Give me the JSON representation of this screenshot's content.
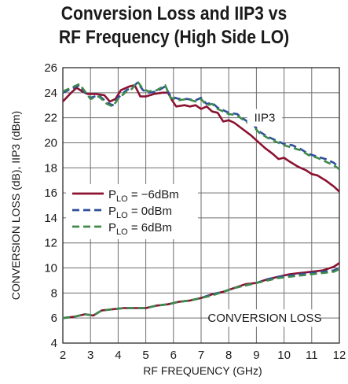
{
  "chart_data": {
    "type": "line",
    "title_line1": "Conversion Loss and IIP3 vs",
    "title_line2": "RF Frequency (High Side LO)",
    "xlabel": "RF FREQUENCY (GHz)",
    "ylabel": "CONVERSION LOSS (dB), IIP3 (dBm)",
    "xlim": [
      2,
      12
    ],
    "ylim": [
      4,
      26
    ],
    "xticks": [
      2,
      3,
      4,
      5,
      6,
      7,
      8,
      9,
      10,
      11,
      12
    ],
    "yticks": [
      4,
      6,
      8,
      10,
      12,
      14,
      16,
      18,
      20,
      22,
      24,
      26
    ],
    "grid": true,
    "legend_position": "middle-left",
    "annotations": [
      {
        "text": "IIP3",
        "x": 9.3,
        "y": 22
      },
      {
        "text": "CONVERSION LOSS",
        "x": 9.3,
        "y": 6
      }
    ],
    "series": [
      {
        "name": "P_LO = −6dBm",
        "legend_main": "P",
        "legend_sub": "LO",
        "legend_rest": " = −6dBm",
        "color": "#8b1230",
        "dash": "solid",
        "iip3": [
          [
            2,
            23.3
          ],
          [
            2.3,
            24
          ],
          [
            2.5,
            24.4
          ],
          [
            2.7,
            24.1
          ],
          [
            2.9,
            23.9
          ],
          [
            3.2,
            23.9
          ],
          [
            3.5,
            23.8
          ],
          [
            3.7,
            23.3
          ],
          [
            3.9,
            23.5
          ],
          [
            4.1,
            24.2
          ],
          [
            4.4,
            24.5
          ],
          [
            4.6,
            24.6
          ],
          [
            4.8,
            23.7
          ],
          [
            5,
            23.7
          ],
          [
            5.3,
            23.9
          ],
          [
            5.6,
            24
          ],
          [
            5.8,
            24
          ],
          [
            5.95,
            23.4
          ],
          [
            6.1,
            22.9
          ],
          [
            6.4,
            23
          ],
          [
            6.6,
            22.9
          ],
          [
            6.8,
            23
          ],
          [
            7,
            22.7
          ],
          [
            7.2,
            22.9
          ],
          [
            7.4,
            22.5
          ],
          [
            7.6,
            22.4
          ],
          [
            7.8,
            21.7
          ],
          [
            8,
            21.8
          ],
          [
            8.2,
            21.6
          ],
          [
            8.5,
            21.1
          ],
          [
            8.8,
            20.6
          ],
          [
            9,
            20.2
          ],
          [
            9.3,
            19.6
          ],
          [
            9.6,
            19.1
          ],
          [
            9.8,
            18.7
          ],
          [
            10,
            18.8
          ],
          [
            10.2,
            18.5
          ],
          [
            10.5,
            18.1
          ],
          [
            10.8,
            17.8
          ],
          [
            11,
            17.5
          ],
          [
            11.2,
            17.4
          ],
          [
            11.5,
            17
          ],
          [
            11.8,
            16.5
          ],
          [
            12,
            16.1
          ]
        ],
        "conversion_loss": [
          [
            2,
            6
          ],
          [
            2.4,
            6.1
          ],
          [
            2.8,
            6.3
          ],
          [
            3.1,
            6.2
          ],
          [
            3.4,
            6.6
          ],
          [
            3.8,
            6.7
          ],
          [
            4.2,
            6.8
          ],
          [
            4.6,
            6.8
          ],
          [
            5,
            6.8
          ],
          [
            5.4,
            7
          ],
          [
            5.8,
            7.1
          ],
          [
            6.2,
            7.3
          ],
          [
            6.6,
            7.4
          ],
          [
            7,
            7.6
          ],
          [
            7.4,
            7.9
          ],
          [
            7.8,
            8.1
          ],
          [
            8.2,
            8.4
          ],
          [
            8.6,
            8.7
          ],
          [
            9,
            8.8
          ],
          [
            9.4,
            9.1
          ],
          [
            9.8,
            9.3
          ],
          [
            10.2,
            9.5
          ],
          [
            10.6,
            9.6
          ],
          [
            11,
            9.7
          ],
          [
            11.4,
            9.8
          ],
          [
            11.8,
            10.1
          ],
          [
            12,
            10.4
          ]
        ]
      },
      {
        "name": "P_LO = 0dBm",
        "legend_main": "P",
        "legend_sub": "LO",
        "legend_rest": " = 0dBm",
        "color": "#2e4e9c",
        "dash": "dash",
        "iip3": [
          [
            2,
            24
          ],
          [
            2.3,
            24.3
          ],
          [
            2.6,
            24.6
          ],
          [
            2.8,
            24
          ],
          [
            3,
            23.6
          ],
          [
            3.3,
            23.8
          ],
          [
            3.6,
            23.2
          ],
          [
            3.8,
            23
          ],
          [
            4,
            23.6
          ],
          [
            4.3,
            24.2
          ],
          [
            4.5,
            24.4
          ],
          [
            4.7,
            24.8
          ],
          [
            4.9,
            24.2
          ],
          [
            5.1,
            24
          ],
          [
            5.4,
            24.1
          ],
          [
            5.7,
            24.5
          ],
          [
            5.9,
            23.7
          ],
          [
            6.2,
            23.5
          ],
          [
            6.5,
            23.5
          ],
          [
            6.8,
            23.4
          ],
          [
            7,
            23.6
          ],
          [
            7.2,
            23.1
          ],
          [
            7.4,
            23.2
          ],
          [
            7.6,
            22.8
          ],
          [
            7.8,
            22.6
          ],
          [
            8,
            22.4
          ],
          [
            8.3,
            22.3
          ],
          [
            8.6,
            21.8
          ],
          [
            8.9,
            21.4
          ],
          [
            9.1,
            20.9
          ],
          [
            9.4,
            20.5
          ],
          [
            9.7,
            20.2
          ],
          [
            10,
            19.9
          ],
          [
            10.3,
            19.8
          ],
          [
            10.6,
            19.5
          ],
          [
            10.9,
            19.1
          ],
          [
            11.2,
            18.9
          ],
          [
            11.5,
            18.7
          ],
          [
            11.8,
            18.4
          ],
          [
            12,
            18
          ]
        ],
        "conversion_loss": [
          [
            2,
            6
          ],
          [
            2.4,
            6.1
          ],
          [
            2.8,
            6.3
          ],
          [
            3.1,
            6.2
          ],
          [
            3.4,
            6.6
          ],
          [
            3.8,
            6.7
          ],
          [
            4.2,
            6.8
          ],
          [
            4.6,
            6.8
          ],
          [
            5,
            6.8
          ],
          [
            5.4,
            7
          ],
          [
            5.8,
            7.1
          ],
          [
            6.2,
            7.3
          ],
          [
            6.6,
            7.4
          ],
          [
            7,
            7.6
          ],
          [
            7.4,
            7.9
          ],
          [
            7.8,
            8.1
          ],
          [
            8.2,
            8.4
          ],
          [
            8.6,
            8.6
          ],
          [
            9,
            8.8
          ],
          [
            9.4,
            9.1
          ],
          [
            9.8,
            9.3
          ],
          [
            10.2,
            9.4
          ],
          [
            10.6,
            9.5
          ],
          [
            11,
            9.6
          ],
          [
            11.4,
            9.7
          ],
          [
            11.8,
            9.8
          ],
          [
            12,
            10
          ]
        ]
      },
      {
        "name": "P_LO = 6dBm",
        "legend_main": "P",
        "legend_sub": "LO",
        "legend_rest": " = 6dBm",
        "color": "#3f8a4a",
        "dash": "dash",
        "iip3": [
          [
            2,
            24.1
          ],
          [
            2.3,
            24.4
          ],
          [
            2.6,
            24.7
          ],
          [
            2.8,
            24.1
          ],
          [
            3,
            23.5
          ],
          [
            3.3,
            23.7
          ],
          [
            3.6,
            23.1
          ],
          [
            3.8,
            22.9
          ],
          [
            4,
            23.5
          ],
          [
            4.3,
            24.1
          ],
          [
            4.5,
            24.3
          ],
          [
            4.7,
            24.9
          ],
          [
            4.9,
            24.3
          ],
          [
            5.1,
            24.1
          ],
          [
            5.4,
            24.2
          ],
          [
            5.7,
            24.6
          ],
          [
            5.9,
            23.6
          ],
          [
            6.2,
            23.4
          ],
          [
            6.5,
            23.5
          ],
          [
            6.8,
            23.3
          ],
          [
            7,
            23.5
          ],
          [
            7.2,
            23
          ],
          [
            7.4,
            23.1
          ],
          [
            7.6,
            22.7
          ],
          [
            7.8,
            22.5
          ],
          [
            8,
            22.3
          ],
          [
            8.3,
            22.2
          ],
          [
            8.6,
            21.7
          ],
          [
            8.9,
            21.3
          ],
          [
            9.1,
            20.8
          ],
          [
            9.4,
            20.4
          ],
          [
            9.7,
            20.1
          ],
          [
            10,
            19.8
          ],
          [
            10.3,
            19.6
          ],
          [
            10.6,
            19.4
          ],
          [
            10.9,
            19
          ],
          [
            11.2,
            18.8
          ],
          [
            11.5,
            18.5
          ],
          [
            11.8,
            18.2
          ],
          [
            12,
            17.9
          ]
        ],
        "conversion_loss": [
          [
            2,
            6
          ],
          [
            2.4,
            6.1
          ],
          [
            2.8,
            6.3
          ],
          [
            3.1,
            6.2
          ],
          [
            3.4,
            6.6
          ],
          [
            3.8,
            6.7
          ],
          [
            4.2,
            6.8
          ],
          [
            4.6,
            6.8
          ],
          [
            5,
            6.8
          ],
          [
            5.4,
            7
          ],
          [
            5.8,
            7.1
          ],
          [
            6.2,
            7.3
          ],
          [
            6.6,
            7.4
          ],
          [
            7,
            7.6
          ],
          [
            7.4,
            7.8
          ],
          [
            7.8,
            8.1
          ],
          [
            8.2,
            8.4
          ],
          [
            8.6,
            8.6
          ],
          [
            9,
            8.8
          ],
          [
            9.4,
            9
          ],
          [
            9.8,
            9.2
          ],
          [
            10.2,
            9.3
          ],
          [
            10.6,
            9.4
          ],
          [
            11,
            9.5
          ],
          [
            11.4,
            9.6
          ],
          [
            11.8,
            9.7
          ],
          [
            12,
            9.9
          ]
        ]
      }
    ]
  }
}
